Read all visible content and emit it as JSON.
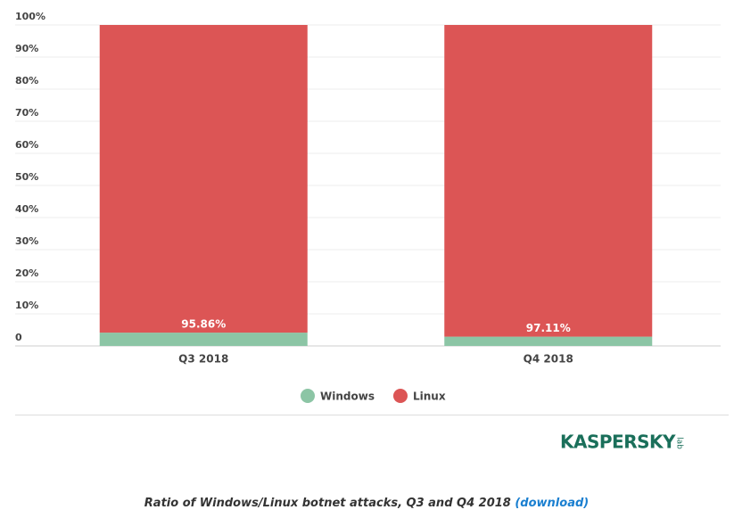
{
  "chart_data": {
    "type": "stacked_bar",
    "categories": [
      "Q3 2018",
      "Q4 2018"
    ],
    "series": [
      {
        "name": "Windows",
        "color": "#8cc5a5",
        "values": [
          4.14,
          2.89
        ]
      },
      {
        "name": "Linux",
        "color": "#dc5555",
        "values": [
          95.86,
          97.11
        ],
        "value_labels": [
          "95.86%",
          "97.11%"
        ]
      }
    ],
    "ylim": [
      0,
      100
    ],
    "yticks": [
      0,
      {
        "value": 10,
        "label": "10%"
      },
      {
        "value": 20,
        "label": "20%"
      },
      {
        "value": 30,
        "label": "30%"
      },
      {
        "value": 40,
        "label": "40%"
      },
      {
        "value": 50,
        "label": "50%"
      },
      {
        "value": 60,
        "label": "60%"
      },
      {
        "value": 70,
        "label": "70%"
      },
      {
        "value": 80,
        "label": "80%"
      },
      {
        "value": 90,
        "label": "90%"
      },
      {
        "value": 100,
        "label": "100%"
      }
    ],
    "grid": true,
    "legend": "bottom",
    "caption": "Ratio of Windows/Linux botnet attacks, Q3 and Q4 2018",
    "caption_link": "(download)",
    "logo": "KASPERSKY",
    "logo_suffix": "lab"
  }
}
